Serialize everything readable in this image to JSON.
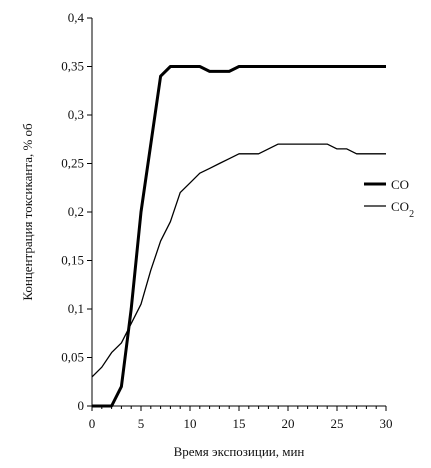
{
  "chart_data": {
    "type": "line",
    "xlabel": "Время экспозиции, мин",
    "ylabel": "Концентрация токсиканта, % об",
    "xlim": [
      0,
      30
    ],
    "ylim": [
      0,
      0.4
    ],
    "x_ticks": [
      0,
      5,
      10,
      15,
      20,
      25,
      30
    ],
    "x_tick_labels": [
      "0",
      "5",
      "10",
      "15",
      "20",
      "25",
      "30"
    ],
    "y_ticks": [
      0,
      0.05,
      0.1,
      0.15,
      0.2,
      0.25,
      0.3,
      0.35,
      0.4
    ],
    "y_tick_labels": [
      "0",
      "0,05",
      "0,1",
      "0,15",
      "0,2",
      "0,25",
      "0,3",
      "0,35",
      "0,4"
    ],
    "grid": false,
    "legend_position": "right",
    "series": [
      {
        "name": "CO",
        "color": "#000000",
        "line_weight": "thick",
        "points": [
          [
            0,
            0
          ],
          [
            1,
            0
          ],
          [
            2,
            0
          ],
          [
            3,
            0.02
          ],
          [
            4,
            0.1
          ],
          [
            5,
            0.2
          ],
          [
            6,
            0.27
          ],
          [
            7,
            0.34
          ],
          [
            8,
            0.35
          ],
          [
            9,
            0.35
          ],
          [
            10,
            0.35
          ],
          [
            11,
            0.35
          ],
          [
            12,
            0.345
          ],
          [
            13,
            0.345
          ],
          [
            14,
            0.345
          ],
          [
            15,
            0.35
          ],
          [
            16,
            0.35
          ],
          [
            18,
            0.35
          ],
          [
            20,
            0.35
          ],
          [
            22,
            0.35
          ],
          [
            24,
            0.35
          ],
          [
            26,
            0.35
          ],
          [
            28,
            0.35
          ],
          [
            30,
            0.35
          ]
        ]
      },
      {
        "name": "CO2",
        "color": "#000000",
        "line_weight": "thin",
        "points": [
          [
            0,
            0.03
          ],
          [
            1,
            0.04
          ],
          [
            2,
            0.055
          ],
          [
            3,
            0.065
          ],
          [
            4,
            0.085
          ],
          [
            5,
            0.105
          ],
          [
            6,
            0.14
          ],
          [
            7,
            0.17
          ],
          [
            8,
            0.19
          ],
          [
            9,
            0.22
          ],
          [
            10,
            0.23
          ],
          [
            11,
            0.24
          ],
          [
            12,
            0.245
          ],
          [
            13,
            0.25
          ],
          [
            14,
            0.255
          ],
          [
            15,
            0.26
          ],
          [
            16,
            0.26
          ],
          [
            17,
            0.26
          ],
          [
            18,
            0.265
          ],
          [
            19,
            0.27
          ],
          [
            20,
            0.27
          ],
          [
            21,
            0.27
          ],
          [
            22,
            0.27
          ],
          [
            23,
            0.27
          ],
          [
            24,
            0.27
          ],
          [
            25,
            0.265
          ],
          [
            26,
            0.265
          ],
          [
            27,
            0.26
          ],
          [
            28,
            0.26
          ],
          [
            29,
            0.26
          ],
          [
            30,
            0.26
          ]
        ]
      }
    ]
  }
}
